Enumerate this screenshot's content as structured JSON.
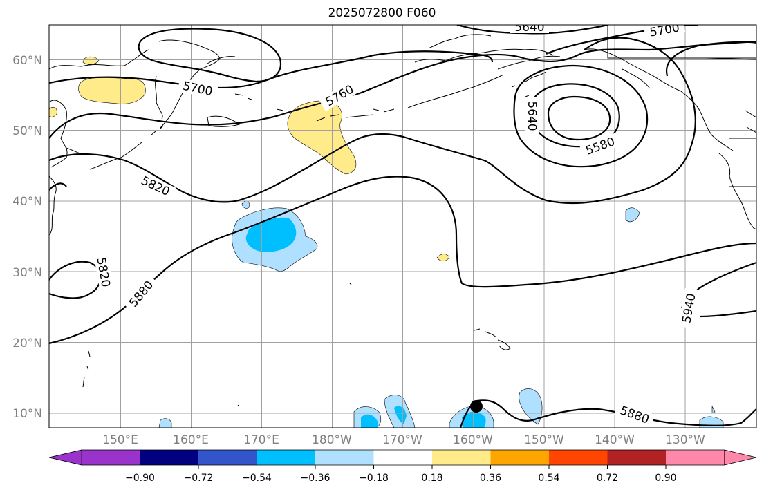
{
  "title": "2025072800 F060",
  "map": {
    "projection": "equirectangular",
    "lon_range": [
      "140°E",
      "120°W"
    ],
    "lat_range": [
      "8°N",
      "65°N"
    ],
    "gridlines": true,
    "lat_labels": [
      "60°N",
      "50°N",
      "40°N",
      "30°N",
      "20°N",
      "10°N"
    ],
    "lon_labels": [
      "150°E",
      "160°E",
      "170°E",
      "180°W",
      "170°W",
      "160°W",
      "150°W",
      "140°W",
      "130°W"
    ],
    "contour_color": "#000000",
    "contour_labels": [
      "5640",
      "5700",
      "5700",
      "5760",
      "5640",
      "5580",
      "5820",
      "5820",
      "5880",
      "5940",
      "5880"
    ],
    "marker": "filled-circle"
  },
  "colorbar": {
    "colors": [
      "#9933cc",
      "#000080",
      "#3355cc",
      "#00bfff",
      "#b0e0ff",
      "#ffffff",
      "#ffeb8a",
      "#ffa500",
      "#ff4500",
      "#b22222",
      "#ff88aa"
    ],
    "ticks": [
      "−0.90",
      "−0.72",
      "−0.54",
      "−0.36",
      "−0.18",
      "0.18",
      "0.36",
      "0.54",
      "0.72",
      "0.90"
    ],
    "extend": "both"
  }
}
